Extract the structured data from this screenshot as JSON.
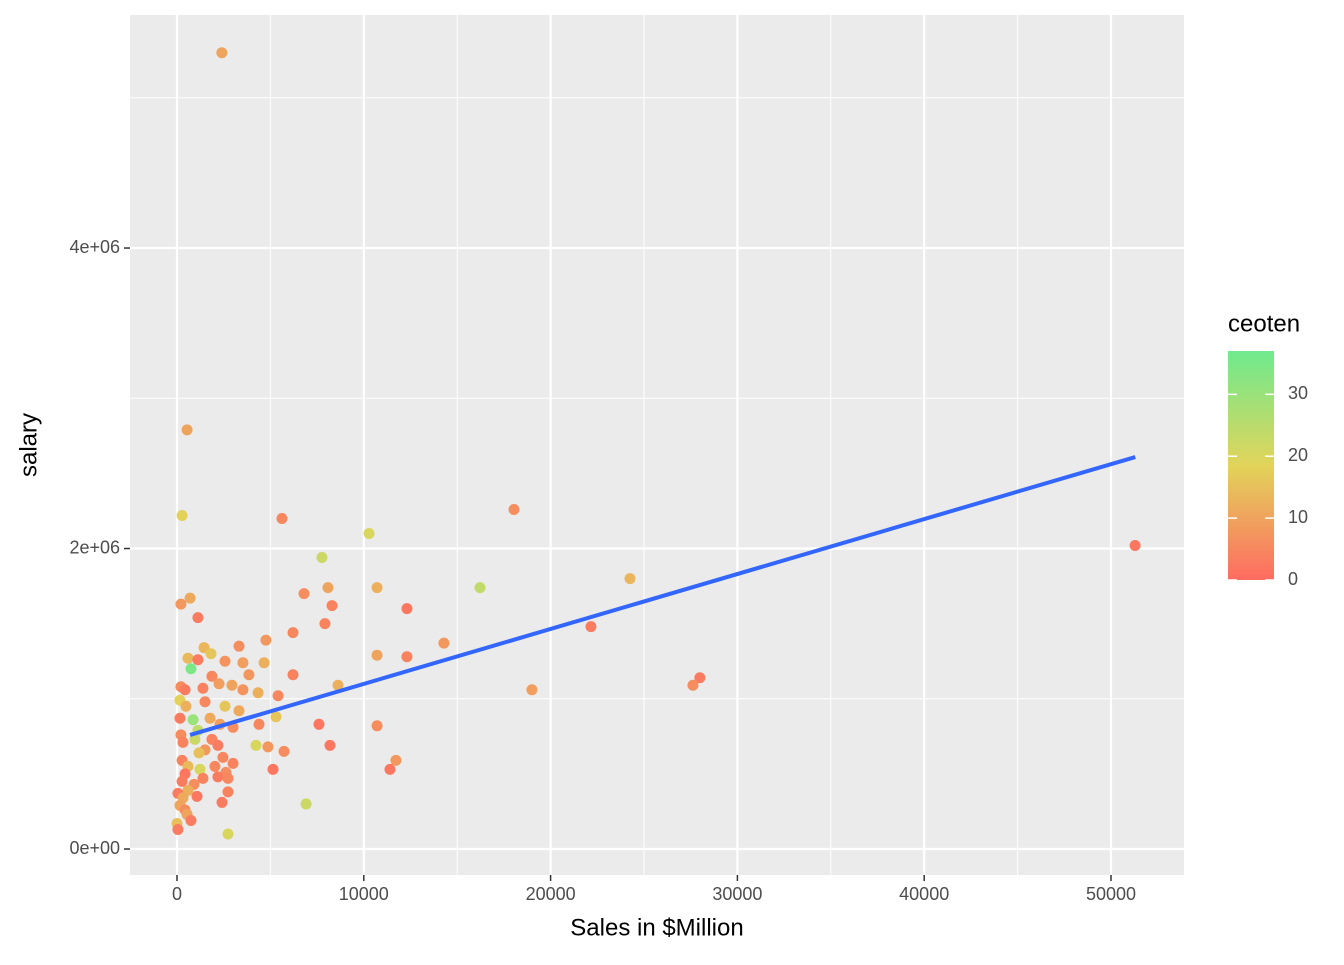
{
  "chart_data": {
    "type": "scatter",
    "x_label": "Sales in $Million",
    "y_label": "salary",
    "legend_title": "ceoten",
    "xlim": [
      -2516,
      53908
    ],
    "ylim": [
      -173000,
      5551000
    ],
    "xticks": [
      0,
      10000,
      20000,
      30000,
      40000,
      50000
    ],
    "x_minor_grid": [
      5000,
      15000,
      25000,
      35000,
      45000
    ],
    "yticks": [
      {
        "value": 0,
        "label": "0e+00"
      },
      {
        "value": 2000000,
        "label": "2e+06"
      },
      {
        "value": 4000000,
        "label": "4e+06"
      }
    ],
    "y_minor_grid": [
      1000000,
      3000000,
      5000000
    ],
    "grid": true,
    "clim": [
      0,
      37
    ],
    "cticks": [
      0,
      10,
      20,
      30
    ],
    "colors": [
      "#FF6B61",
      "#E2D45A",
      "#6EEA8E"
    ],
    "points": {
      "x": [
        2400,
        540,
        270,
        5620,
        10280,
        18040,
        7760,
        51290,
        24250,
        16220,
        8080,
        10710,
        6800,
        700,
        210,
        8300,
        12310,
        1120,
        7920,
        22160,
        6210,
        14290,
        4760,
        3320,
        1450,
        10710,
        12310,
        590,
        1820,
        3530,
        4660,
        1120,
        2570,
        750,
        6210,
        1870,
        27990,
        3850,
        27620,
        19000,
        8620,
        210,
        2250,
        2940,
        3530,
        4340,
        5410,
        430,
        160,
        1500,
        480,
        2570,
        3320,
        5300,
        160,
        860,
        1770,
        4390,
        7600,
        10710,
        2300,
        3000,
        1120,
        210,
        960,
        1870,
        320,
        2190,
        4230,
        8190,
        4870,
        1500,
        5730,
        1180,
        2460,
        11720,
        270,
        3000,
        590,
        2030,
        5140,
        11400,
        1230,
        2620,
        430,
        2190,
        2730,
        1390,
        270,
        910,
        590,
        2730,
        50,
        1070,
        320,
        2410,
        6910,
        160,
        430,
        540,
        750,
        0,
        50,
        2730,
        1390
      ],
      "y": [
        5300000,
        2790000,
        2220000,
        2200000,
        2100000,
        2260000,
        1940000,
        2020000,
        1800000,
        1740000,
        1740000,
        1740000,
        1700000,
        1670000,
        1630000,
        1620000,
        1600000,
        1540000,
        1500000,
        1480000,
        1440000,
        1370000,
        1390000,
        1350000,
        1340000,
        1290000,
        1280000,
        1270000,
        1300000,
        1240000,
        1240000,
        1260000,
        1250000,
        1200000,
        1160000,
        1150000,
        1140000,
        1160000,
        1090000,
        1060000,
        1090000,
        1080000,
        1100000,
        1090000,
        1060000,
        1040000,
        1020000,
        1060000,
        990000,
        980000,
        950000,
        950000,
        920000,
        880000,
        870000,
        860000,
        870000,
        830000,
        830000,
        820000,
        830000,
        810000,
        790000,
        760000,
        730000,
        730000,
        710000,
        690000,
        690000,
        690000,
        680000,
        660000,
        650000,
        640000,
        610000,
        590000,
        590000,
        570000,
        550000,
        550000,
        530000,
        530000,
        530000,
        510000,
        500000,
        480000,
        470000,
        470000,
        450000,
        430000,
        390000,
        380000,
        370000,
        350000,
        340000,
        310000,
        300000,
        290000,
        260000,
        230000,
        190000,
        170000,
        130000,
        100000,
        1070000
      ],
      "ceoten": [
        10,
        10,
        18,
        5,
        20,
        6,
        22,
        2,
        13,
        24,
        10,
        12,
        6,
        11,
        8,
        4,
        2,
        3,
        4,
        3,
        5,
        8,
        8,
        6,
        13,
        10,
        4,
        14,
        16,
        9,
        12,
        3,
        7,
        35,
        4,
        5,
        3,
        8,
        6,
        9,
        12,
        6,
        9,
        10,
        7,
        12,
        5,
        3,
        18,
        5,
        12,
        16,
        11,
        16,
        3,
        30,
        11,
        5,
        2,
        6,
        9,
        6,
        24,
        6,
        22,
        4,
        4,
        3,
        20,
        2,
        8,
        8,
        6,
        15,
        5,
        8,
        4,
        4,
        14,
        5,
        2,
        2,
        20,
        6,
        2,
        3,
        5,
        4,
        3,
        6,
        12,
        4,
        3,
        2,
        11,
        3,
        22,
        10,
        6,
        10,
        3,
        15,
        3,
        20,
        4
      ]
    },
    "fit": {
      "x": [
        700,
        51300
      ],
      "y": [
        759000,
        2609000
      ],
      "color": "#3366FF"
    }
  }
}
